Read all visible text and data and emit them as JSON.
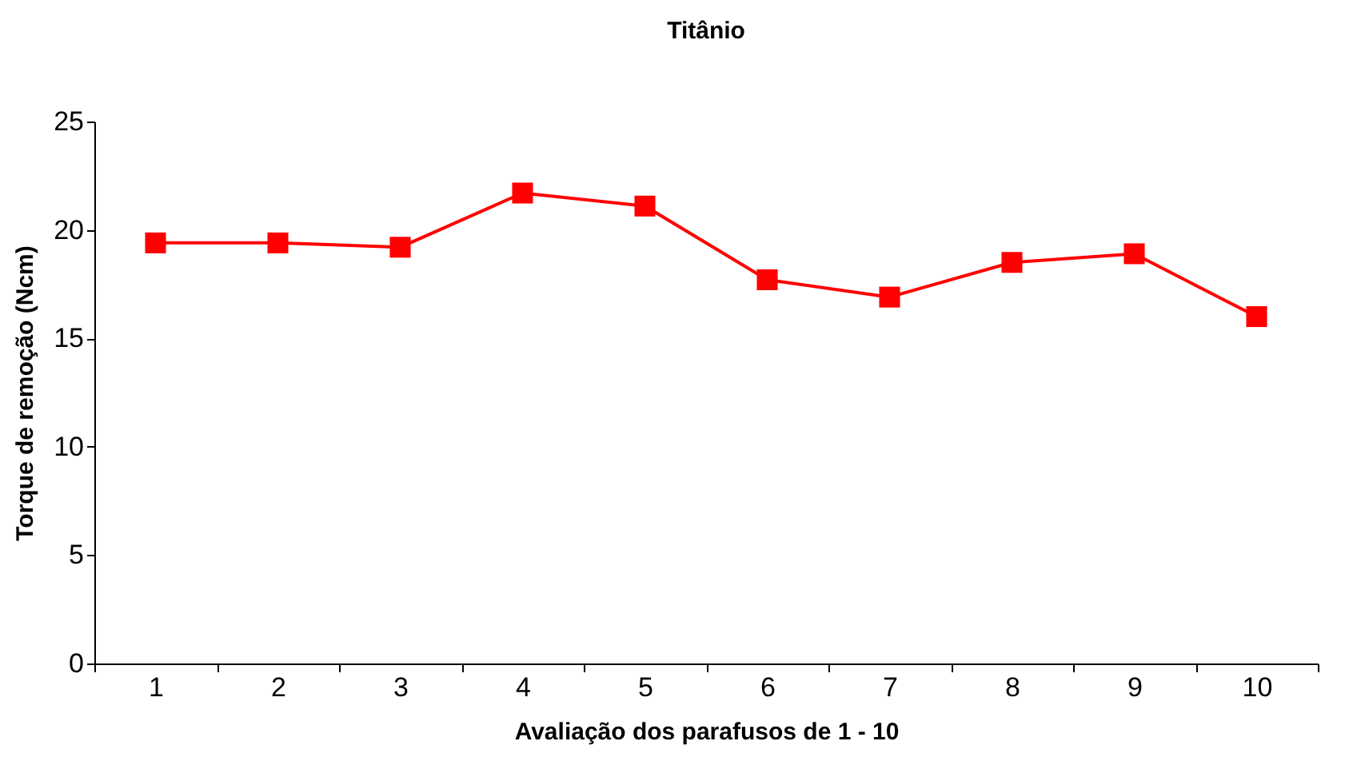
{
  "chart_data": {
    "type": "line",
    "title": "Titânio",
    "xlabel": "Avaliação dos parafusos de 1 - 10",
    "ylabel": "Torque de remoção (Ncm)",
    "categories": [
      "1",
      "2",
      "3",
      "4",
      "5",
      "6",
      "7",
      "8",
      "9",
      "10"
    ],
    "series": [
      {
        "color": "#ff0000",
        "values": [
          19.4,
          19.4,
          19.2,
          21.7,
          21.1,
          17.7,
          16.9,
          18.5,
          18.9,
          16.0
        ]
      }
    ],
    "ylim": [
      0,
      25
    ],
    "yticks": [
      0,
      5,
      10,
      15,
      20,
      25
    ],
    "grid": false,
    "legend": false,
    "marker": "square",
    "line_style": "solid"
  }
}
